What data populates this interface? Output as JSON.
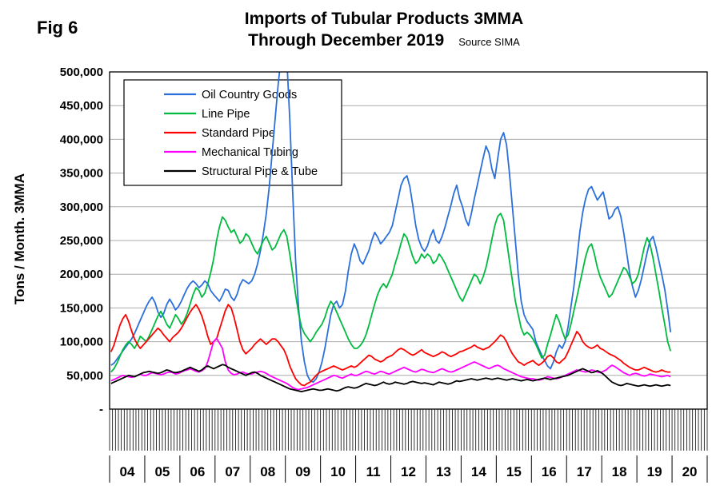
{
  "figure": {
    "fig_label": "Fig 6",
    "title_line1": "Imports of Tubular Products 3MMA",
    "title_line2": "Through December 2019",
    "source": "Source SIMA",
    "y_axis_title": "Tons / Month. 3MMA"
  },
  "colors": {
    "oil_country_goods": "#2A6FDB",
    "line_pipe": "#00BB3F",
    "standard_pipe": "#FF0000",
    "mechanical_tubing": "#FF00FF",
    "structural_pipe_tube": "#000000",
    "gridline": "#ABABAB",
    "axis": "#000000"
  },
  "chart_data": {
    "type": "line",
    "title": "Imports of Tubular Products 3MMA Through December 2019",
    "source": "Source SIMA",
    "ylabel": "Tons / Month. 3MMA",
    "ylim": [
      0,
      500000
    ],
    "y_tick_step": 50000,
    "y_tick_labels": [
      "500,000",
      "450,000",
      "400,000",
      "350,000",
      "300,000",
      "250,000",
      "200,000",
      "150,000",
      "100,000",
      "50,000",
      "-"
    ],
    "x_axis_years": [
      "04",
      "05",
      "06",
      "07",
      "08",
      "09",
      "10",
      "11",
      "12",
      "13",
      "14",
      "15",
      "16",
      "17",
      "18",
      "19",
      "20"
    ],
    "x_axis_total_months": 204,
    "x_data_start": "Jan 2004",
    "x_data_end": "Dec 2019",
    "grid": "horizontal gridlines every 50,000",
    "legend_position": "inside top-left",
    "series": [
      {
        "name": "Oil Country Goods",
        "color": "#2A6FDB",
        "values": [
          65000,
          68000,
          74000,
          80000,
          86000,
          92000,
          98000,
          104000,
          112000,
          122000,
          132000,
          142000,
          152000,
          160000,
          166000,
          158000,
          144000,
          136000,
          142000,
          155000,
          163000,
          156000,
          147000,
          152000,
          160000,
          170000,
          179000,
          186000,
          190000,
          186000,
          180000,
          184000,
          190000,
          186000,
          176000,
          170000,
          165000,
          160000,
          168000,
          178000,
          176000,
          166000,
          161000,
          170000,
          184000,
          192000,
          189000,
          186000,
          190000,
          200000,
          215000,
          235000,
          260000,
          290000,
          330000,
          380000,
          430000,
          480000,
          520000,
          545000,
          520000,
          430000,
          320000,
          220000,
          150000,
          100000,
          70000,
          50000,
          42000,
          40000,
          45000,
          55000,
          70000,
          90000,
          115000,
          140000,
          155000,
          160000,
          150000,
          155000,
          175000,
          205000,
          230000,
          245000,
          235000,
          220000,
          215000,
          225000,
          235000,
          250000,
          262000,
          255000,
          245000,
          250000,
          256000,
          262000,
          272000,
          292000,
          312000,
          332000,
          342000,
          346000,
          330000,
          302000,
          272000,
          252000,
          240000,
          234000,
          242000,
          256000,
          266000,
          250000,
          246000,
          256000,
          270000,
          286000,
          302000,
          320000,
          332000,
          312000,
          300000,
          282000,
          272000,
          290000,
          312000,
          332000,
          352000,
          372000,
          390000,
          380000,
          356000,
          342000,
          372000,
          400000,
          410000,
          392000,
          350000,
          300000,
          250000,
          200000,
          160000,
          140000,
          130000,
          124000,
          118000,
          100000,
          90000,
          80000,
          72000,
          64000,
          60000,
          70000,
          85000,
          95000,
          90000,
          100000,
          122000,
          152000,
          182000,
          222000,
          262000,
          292000,
          312000,
          326000,
          330000,
          320000,
          310000,
          316000,
          322000,
          302000,
          282000,
          286000,
          296000,
          300000,
          286000,
          262000,
          232000,
          202000,
          182000,
          166000,
          176000,
          192000,
          212000,
          232000,
          250000,
          256000,
          240000,
          220000,
          200000,
          178000,
          148000,
          114000
        ]
      },
      {
        "name": "Line Pipe",
        "color": "#00BB3F",
        "values": [
          55000,
          60000,
          68000,
          78000,
          88000,
          95000,
          100000,
          96000,
          90000,
          98000,
          108000,
          104000,
          100000,
          108000,
          118000,
          128000,
          138000,
          145000,
          136000,
          126000,
          120000,
          130000,
          140000,
          134000,
          126000,
          132000,
          142000,
          156000,
          170000,
          180000,
          176000,
          166000,
          172000,
          186000,
          202000,
          222000,
          250000,
          270000,
          285000,
          280000,
          270000,
          262000,
          266000,
          256000,
          246000,
          250000,
          260000,
          256000,
          246000,
          236000,
          230000,
          240000,
          250000,
          256000,
          246000,
          236000,
          240000,
          250000,
          260000,
          266000,
          256000,
          230000,
          200000,
          170000,
          142000,
          122000,
          112000,
          106000,
          100000,
          106000,
          114000,
          120000,
          126000,
          136000,
          150000,
          160000,
          154000,
          144000,
          134000,
          124000,
          114000,
          104000,
          96000,
          90000,
          90000,
          94000,
          100000,
          110000,
          124000,
          140000,
          156000,
          170000,
          180000,
          186000,
          180000,
          190000,
          200000,
          216000,
          230000,
          246000,
          260000,
          254000,
          240000,
          226000,
          216000,
          220000,
          230000,
          224000,
          230000,
          226000,
          216000,
          220000,
          230000,
          224000,
          216000,
          206000,
          196000,
          186000,
          176000,
          166000,
          160000,
          170000,
          180000,
          190000,
          200000,
          196000,
          186000,
          196000,
          210000,
          230000,
          252000,
          272000,
          286000,
          290000,
          280000,
          250000,
          220000,
          190000,
          160000,
          140000,
          120000,
          110000,
          114000,
          110000,
          104000,
          96000,
          86000,
          76000,
          80000,
          96000,
          110000,
          126000,
          140000,
          130000,
          116000,
          104000,
          110000,
          126000,
          146000,
          166000,
          186000,
          206000,
          226000,
          240000,
          245000,
          230000,
          210000,
          196000,
          186000,
          176000,
          166000,
          170000,
          180000,
          190000,
          200000,
          210000,
          206000,
          196000,
          186000,
          190000,
          200000,
          220000,
          240000,
          254000,
          244000,
          224000,
          200000,
          176000,
          150000,
          126000,
          100000,
          86000
        ]
      },
      {
        "name": "Standard Pipe",
        "color": "#FF0000",
        "values": [
          85000,
          95000,
          110000,
          124000,
          134000,
          140000,
          130000,
          116000,
          104000,
          96000,
          90000,
          95000,
          100000,
          105000,
          110000,
          115000,
          120000,
          116000,
          110000,
          105000,
          100000,
          106000,
          110000,
          114000,
          120000,
          128000,
          136000,
          144000,
          150000,
          155000,
          148000,
          138000,
          124000,
          108000,
          96000,
          100000,
          104000,
          118000,
          132000,
          146000,
          155000,
          150000,
          136000,
          118000,
          100000,
          88000,
          82000,
          86000,
          90000,
          96000,
          100000,
          104000,
          100000,
          96000,
          100000,
          104000,
          104000,
          100000,
          94000,
          88000,
          78000,
          64000,
          54000,
          45000,
          40000,
          36000,
          35000,
          38000,
          40000,
          45000,
          50000,
          54000,
          56000,
          58000,
          60000,
          62000,
          64000,
          62000,
          60000,
          58000,
          60000,
          62000,
          64000,
          62000,
          64000,
          68000,
          72000,
          76000,
          80000,
          78000,
          74000,
          72000,
          70000,
          72000,
          76000,
          78000,
          80000,
          84000,
          88000,
          90000,
          88000,
          85000,
          82000,
          80000,
          82000,
          85000,
          88000,
          84000,
          82000,
          80000,
          78000,
          80000,
          82000,
          85000,
          83000,
          80000,
          78000,
          80000,
          82000,
          85000,
          86000,
          88000,
          90000,
          92000,
          95000,
          92000,
          90000,
          88000,
          90000,
          92000,
          96000,
          100000,
          105000,
          110000,
          107000,
          100000,
          90000,
          82000,
          76000,
          70000,
          68000,
          65000,
          68000,
          70000,
          72000,
          68000,
          65000,
          68000,
          72000,
          78000,
          80000,
          76000,
          70000,
          68000,
          72000,
          76000,
          85000,
          95000,
          105000,
          115000,
          110000,
          100000,
          95000,
          92000,
          90000,
          92000,
          95000,
          90000,
          88000,
          85000,
          82000,
          80000,
          78000,
          75000,
          72000,
          68000,
          65000,
          62000,
          60000,
          58000,
          58000,
          60000,
          62000,
          60000,
          58000,
          56000,
          55000,
          56000,
          58000,
          56000,
          55000,
          55000
        ]
      },
      {
        "name": "Mechanical Tubing",
        "color": "#FF00FF",
        "values": [
          42000,
          44000,
          46000,
          48000,
          50000,
          49000,
          48000,
          47000,
          48000,
          50000,
          52000,
          50000,
          50000,
          52000,
          54000,
          53000,
          52000,
          51000,
          52000,
          54000,
          55000,
          54000,
          52000,
          53000,
          55000,
          57000,
          58000,
          60000,
          58000,
          56000,
          55000,
          57000,
          60000,
          70000,
          85000,
          100000,
          105000,
          98000,
          90000,
          70000,
          58000,
          53000,
          51000,
          52000,
          54000,
          55000,
          53000,
          52000,
          52000,
          54000,
          55000,
          56000,
          55000,
          53000,
          50000,
          48000,
          46000,
          44000,
          42000,
          40000,
          38000,
          35000,
          32000,
          30000,
          29000,
          30000,
          31000,
          32000,
          34000,
          36000,
          38000,
          40000,
          42000,
          44000,
          46000,
          48000,
          50000,
          49000,
          47000,
          46000,
          48000,
          50000,
          52000,
          50000,
          50000,
          52000,
          54000,
          56000,
          55000,
          53000,
          52000,
          54000,
          56000,
          55000,
          53000,
          52000,
          54000,
          56000,
          58000,
          60000,
          62000,
          60000,
          58000,
          56000,
          55000,
          57000,
          59000,
          58000,
          56000,
          55000,
          54000,
          56000,
          58000,
          60000,
          58000,
          56000,
          55000,
          56000,
          58000,
          60000,
          62000,
          64000,
          66000,
          68000,
          70000,
          68000,
          66000,
          64000,
          62000,
          60000,
          62000,
          64000,
          65000,
          63000,
          60000,
          58000,
          56000,
          54000,
          52000,
          50000,
          48000,
          47000,
          46000,
          45000,
          45000,
          44000,
          43000,
          44000,
          46000,
          48000,
          47000,
          46000,
          45000,
          46000,
          48000,
          50000,
          52000,
          54000,
          56000,
          58000,
          57000,
          56000,
          55000,
          56000,
          58000,
          57000,
          55000,
          54000,
          56000,
          58000,
          62000,
          65000,
          63000,
          60000,
          57000,
          54000,
          52000,
          50000,
          52000,
          53000,
          52000,
          50000,
          49000,
          50000,
          52000,
          51000,
          50000,
          49000,
          48000,
          49000,
          50000,
          48000
        ]
      },
      {
        "name": "Structural Pipe & Tube",
        "color": "#000000",
        "values": [
          38000,
          40000,
          42000,
          44000,
          46000,
          48000,
          50000,
          49000,
          48000,
          50000,
          52000,
          54000,
          55000,
          56000,
          55000,
          54000,
          53000,
          54000,
          56000,
          58000,
          57000,
          55000,
          54000,
          55000,
          56000,
          58000,
          60000,
          62000,
          60000,
          58000,
          56000,
          58000,
          62000,
          64000,
          62000,
          60000,
          62000,
          64000,
          66000,
          65000,
          62000,
          60000,
          58000,
          56000,
          54000,
          52000,
          50000,
          52000,
          54000,
          55000,
          53000,
          50000,
          48000,
          46000,
          44000,
          42000,
          40000,
          38000,
          36000,
          34000,
          32000,
          30000,
          29000,
          28000,
          27000,
          26000,
          27000,
          28000,
          29000,
          30000,
          29000,
          28000,
          28000,
          29000,
          30000,
          29000,
          28000,
          27000,
          28000,
          30000,
          32000,
          33000,
          32000,
          31000,
          32000,
          34000,
          36000,
          38000,
          37000,
          36000,
          35000,
          36000,
          38000,
          40000,
          38000,
          37000,
          38000,
          40000,
          39000,
          38000,
          37000,
          38000,
          40000,
          41000,
          40000,
          39000,
          38000,
          39000,
          38000,
          37000,
          36000,
          38000,
          40000,
          39000,
          38000,
          37000,
          38000,
          40000,
          42000,
          41000,
          42000,
          43000,
          44000,
          45000,
          44000,
          43000,
          44000,
          45000,
          46000,
          45000,
          44000,
          45000,
          46000,
          45000,
          44000,
          43000,
          44000,
          45000,
          44000,
          43000,
          42000,
          43000,
          44000,
          43000,
          42000,
          43000,
          44000,
          45000,
          46000,
          45000,
          44000,
          45000,
          46000,
          47000,
          48000,
          49000,
          50000,
          52000,
          54000,
          56000,
          58000,
          60000,
          58000,
          56000,
          54000,
          55000,
          57000,
          55000,
          52000,
          48000,
          44000,
          40000,
          38000,
          36000,
          35000,
          36000,
          38000,
          37000,
          36000,
          35000,
          34000,
          35000,
          36000,
          35000,
          34000,
          35000,
          36000,
          35000,
          34000,
          35000,
          36000,
          35000
        ]
      }
    ]
  }
}
